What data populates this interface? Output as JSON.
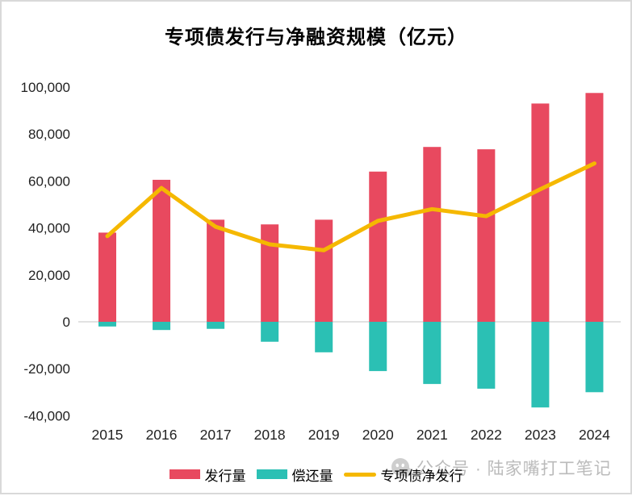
{
  "title": "专项债发行与净融资规模（亿元）",
  "legend": [
    {
      "label": "发行量",
      "type": "bar",
      "color": "#E8495F"
    },
    {
      "label": "偿还量",
      "type": "bar",
      "color": "#2BC0B4"
    },
    {
      "label": "专项债净发行",
      "type": "line",
      "color": "#F5B800"
    }
  ],
  "watermark": {
    "text": "公众号 · 陆家嘴打工笔记",
    "logo": "wechat-face-icon"
  },
  "colors": {
    "issuance_bar": "#E8495F",
    "repayment_bar": "#2BC0B4",
    "net_line": "#F5B800",
    "axis_line": "#D9D9D9",
    "text": "#222222",
    "watermark": "#BDBDBD",
    "border": "#D9D9D9"
  },
  "chart_data": {
    "type": "bar",
    "subtype": "bar+line combo",
    "title": "专项债发行与净融资规模（亿元）",
    "categories": [
      2015,
      2016,
      2017,
      2018,
      2019,
      2020,
      2021,
      2022,
      2023,
      2024
    ],
    "series": [
      {
        "name": "发行量",
        "type": "bar",
        "color": "#E8495F",
        "values": [
          38000,
          60500,
          43500,
          41500,
          43500,
          64000,
          74500,
          73500,
          93000,
          97500
        ]
      },
      {
        "name": "偿还量",
        "type": "bar",
        "color": "#2BC0B4",
        "values": [
          -2000,
          -3500,
          -3000,
          -8500,
          -13000,
          -21000,
          -26500,
          -28500,
          -36500,
          -30000
        ]
      },
      {
        "name": "专项债净发行",
        "type": "line",
        "color": "#F5B800",
        "values": [
          36500,
          57000,
          40500,
          33000,
          30500,
          43000,
          48000,
          45000,
          56500,
          67500
        ]
      }
    ],
    "ylim": [
      -40000,
      100000
    ],
    "yticks": [
      100000,
      80000,
      60000,
      40000,
      20000,
      0,
      -20000,
      -40000
    ],
    "xlabel": "",
    "ylabel": "",
    "grid": false,
    "legend_position": "bottom"
  }
}
